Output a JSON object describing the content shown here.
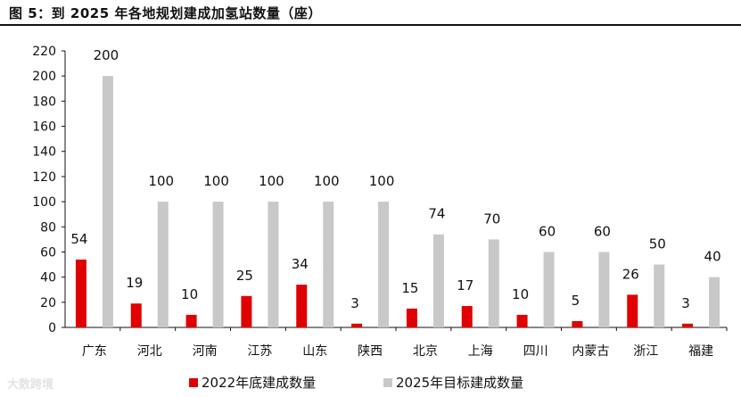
{
  "title": "图 5：到 2025 年各地规划建成加氢站数量（座）",
  "watermark": "大数跨境",
  "chart_data": {
    "type": "bar",
    "categories": [
      "广东",
      "河北",
      "河南",
      "江苏",
      "山东",
      "陕西",
      "北京",
      "上海",
      "四川",
      "内蒙古",
      "浙江",
      "福建"
    ],
    "series": [
      {
        "name": "2022年底建成数量",
        "color": "#e00000",
        "values": [
          54,
          19,
          10,
          25,
          34,
          3,
          15,
          17,
          10,
          5,
          26,
          3
        ]
      },
      {
        "name": "2025年目标建成数量",
        "color": "#c8c8c8",
        "values": [
          200,
          100,
          100,
          100,
          100,
          100,
          74,
          70,
          60,
          60,
          50,
          40
        ]
      }
    ],
    "yticks": [
      0,
      20,
      40,
      60,
      80,
      100,
      120,
      140,
      160,
      180,
      200,
      220
    ],
    "ylim": [
      0,
      220
    ],
    "legend_position": "bottom"
  }
}
